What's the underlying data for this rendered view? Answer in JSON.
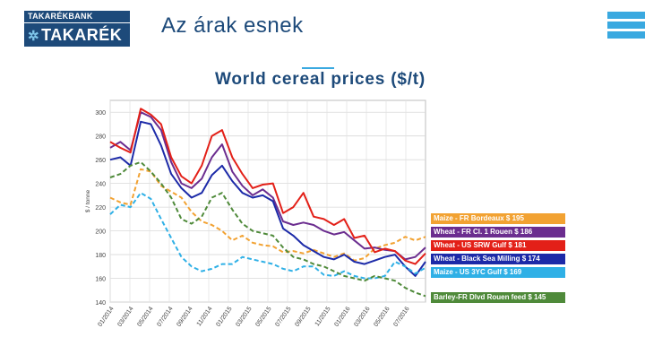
{
  "header": {
    "logo_top": "TAKARÉKBANK",
    "logo_mark": "✲",
    "logo_bottom": "TAKARÉK",
    "title": "Az árak esnek"
  },
  "chart_data": {
    "type": "line",
    "title": "World cereal prices ($/t)",
    "ylabel": "$ / tonne",
    "xlabel": "",
    "ylim": [
      140,
      310
    ],
    "yticks": [
      140,
      160,
      180,
      200,
      220,
      240,
      260,
      280,
      300
    ],
    "ytick_labels": [
      "140",
      "160",
      "180",
      "200",
      "220",
      "240",
      "260",
      "280",
      "300"
    ],
    "x_tick_labels": [
      "01/2014",
      "03/2014",
      "05/2014",
      "07/2014",
      "09/2014",
      "11/2014",
      "01/2015",
      "03/2015",
      "05/2015",
      "07/2015",
      "09/2015",
      "11/2015",
      "01/2016",
      "03/2016",
      "05/2016",
      "07/2016"
    ],
    "grid": true,
    "legend_position": "right",
    "series": [
      {
        "name": "Maize - FR Bordeaux",
        "value_label": "$ 195",
        "color": "#f2a232",
        "dashed": true,
        "values": [
          228,
          224,
          222,
          252,
          250,
          238,
          233,
          228,
          216,
          208,
          205,
          200,
          192,
          196,
          190,
          188,
          187,
          182,
          183,
          181,
          184,
          181,
          178,
          181,
          175,
          177,
          185,
          188,
          190,
          195,
          192,
          195
        ]
      },
      {
        "name": "Wheat - FR Cl. 1 Rouen",
        "value_label": "$ 186",
        "color": "#6b2d8f",
        "dashed": false,
        "values": [
          270,
          275,
          268,
          300,
          296,
          285,
          258,
          240,
          236,
          244,
          262,
          273,
          250,
          238,
          230,
          235,
          228,
          208,
          205,
          207,
          205,
          200,
          197,
          199,
          192,
          185,
          186,
          184,
          183,
          176,
          178,
          186
        ]
      },
      {
        "name": "Wheat - US SRW Gulf",
        "value_label": "$ 181",
        "color": "#e32018",
        "dashed": false,
        "values": [
          275,
          270,
          266,
          303,
          298,
          290,
          262,
          246,
          240,
          255,
          280,
          285,
          262,
          248,
          236,
          239,
          240,
          215,
          220,
          232,
          212,
          210,
          205,
          210,
          194,
          196,
          182,
          185,
          183,
          175,
          172,
          181
        ]
      },
      {
        "name": "Wheat - Black Sea Milling",
        "value_label": "$ 174",
        "color": "#1c2aa8",
        "dashed": false,
        "values": [
          260,
          262,
          255,
          292,
          290,
          272,
          248,
          236,
          228,
          232,
          247,
          255,
          242,
          232,
          228,
          230,
          225,
          202,
          196,
          188,
          183,
          178,
          176,
          180,
          174,
          172,
          175,
          178,
          180,
          170,
          162,
          174
        ]
      },
      {
        "name": "Maize - US 3YC Gulf",
        "value_label": "$ 169",
        "color": "#2fb0e6",
        "dashed": true,
        "values": [
          214,
          222,
          220,
          232,
          227,
          210,
          194,
          178,
          170,
          166,
          168,
          172,
          172,
          178,
          176,
          174,
          172,
          168,
          166,
          170,
          170,
          163,
          162,
          166,
          162,
          160,
          160,
          162,
          174,
          170,
          164,
          169
        ]
      },
      {
        "name": "Barley-FR Dlvd Rouen feed",
        "value_label": "$ 145",
        "color": "#4f8a3a",
        "dashed": true,
        "values": [
          245,
          248,
          255,
          258,
          250,
          240,
          228,
          210,
          206,
          212,
          228,
          232,
          218,
          206,
          200,
          198,
          196,
          186,
          178,
          176,
          172,
          170,
          166,
          162,
          160,
          158,
          162,
          160,
          158,
          152,
          148,
          145
        ]
      }
    ]
  }
}
